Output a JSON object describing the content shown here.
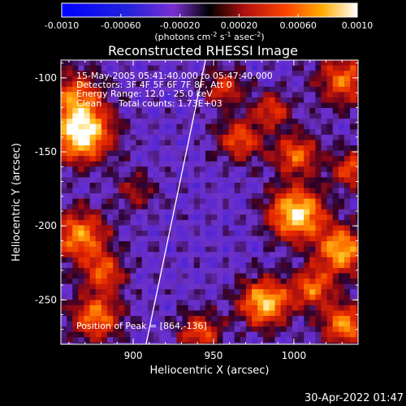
{
  "chart_data": {
    "type": "heatmap",
    "title": "Reconstructed RHESSI Image",
    "xlabel": "Heliocentric X (arcsec)",
    "ylabel": "Heliocentric Y (arcsec)",
    "xlim": [
      855,
      1040
    ],
    "ylim": [
      -280,
      -88
    ],
    "x_ticks": [
      900,
      950,
      1000
    ],
    "y_ticks": [
      -100,
      -150,
      -200,
      -250
    ],
    "colorbar": {
      "min": -0.001,
      "max": 0.001,
      "ticks": [
        "-0.0010",
        "-0.00060",
        "-0.00020",
        "0.00020",
        "0.00060",
        "0.0010"
      ],
      "unit_label": "(photons cm",
      "unit_sup1": "-2",
      "unit_mid": " s",
      "unit_sup2": "-1",
      "unit_mid2": " asec",
      "unit_sup3": "-2",
      "unit_end": ")"
    },
    "annotations": {
      "time_range": "15-May-2005 05:41:40.000 to 05:47:40.000",
      "detectors": "Detectors: 3F 4F 5F 6F 7F 8F, Att 0",
      "energy_range": "Energy Range: 12.0 - 25.0 keV",
      "algorithm": "Clean",
      "total_counts": "Total counts: 1.73E+03",
      "peak": "Position of Peak = [864,-136]"
    },
    "sources": [
      {
        "x": 866,
        "y": -136,
        "intensity": 1.0,
        "radius": 13
      },
      {
        "x": 862,
        "y": -110,
        "intensity": 0.55,
        "radius": 12
      },
      {
        "x": 1000,
        "y": -190,
        "intensity": 0.95,
        "radius": 12
      },
      {
        "x": 980,
        "y": -250,
        "intensity": 0.85,
        "radius": 11
      },
      {
        "x": 1028,
        "y": -215,
        "intensity": 0.8,
        "radius": 11
      },
      {
        "x": 1030,
        "y": -265,
        "intensity": 0.7,
        "radius": 10
      },
      {
        "x": 865,
        "y": -205,
        "intensity": 0.7,
        "radius": 12
      },
      {
        "x": 875,
        "y": -260,
        "intensity": 0.65,
        "radius": 11
      },
      {
        "x": 965,
        "y": -140,
        "intensity": 0.55,
        "radius": 10
      },
      {
        "x": 1030,
        "y": -100,
        "intensity": 0.6,
        "radius": 12
      },
      {
        "x": 1000,
        "y": -150,
        "intensity": 0.6,
        "radius": 10
      },
      {
        "x": 955,
        "y": -105,
        "intensity": 0.45,
        "radius": 9
      },
      {
        "x": 1010,
        "y": -240,
        "intensity": 0.6,
        "radius": 9
      },
      {
        "x": 940,
        "y": -270,
        "intensity": 0.55,
        "radius": 9
      },
      {
        "x": 880,
        "y": -230,
        "intensity": 0.55,
        "radius": 9
      },
      {
        "x": 900,
        "y": -175,
        "intensity": 0.3,
        "radius": 9
      },
      {
        "x": 985,
        "y": -120,
        "intensity": 0.5,
        "radius": 8
      },
      {
        "x": 1035,
        "y": -160,
        "intensity": 0.55,
        "radius": 9
      }
    ],
    "limb": [
      [
        945,
        -88
      ],
      [
        908,
        -280
      ]
    ]
  },
  "footer": {
    "timestamp": "30-Apr-2022 01:47"
  }
}
